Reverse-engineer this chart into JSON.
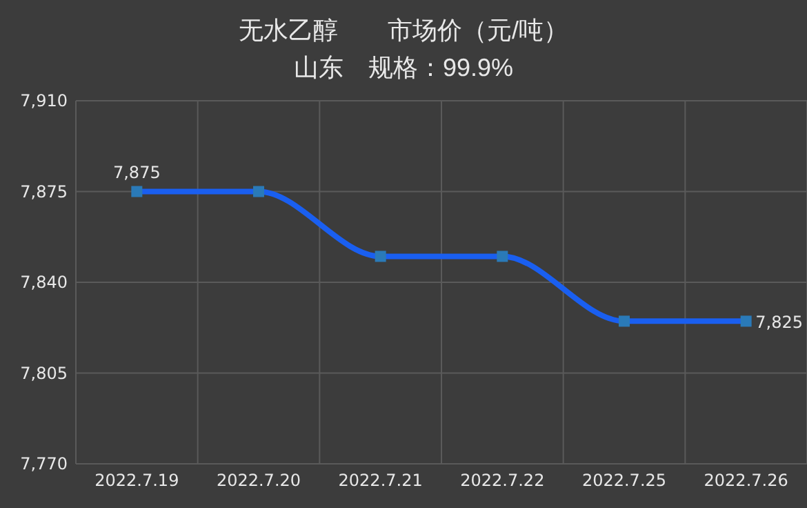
{
  "chart_data": {
    "type": "line",
    "title": "无水乙醇　　市场价（元/吨）",
    "subtitle": "山东　规格：99.9%",
    "categories": [
      "2022.7.19",
      "2022.7.20",
      "2022.7.21",
      "2022.7.22",
      "2022.7.25",
      "2022.7.26"
    ],
    "series": [
      {
        "color": "#1a5ff0",
        "values": [
          7875,
          7875,
          7850,
          7850,
          7825,
          7825
        ],
        "value_labels": [
          "7,875",
          null,
          null,
          null,
          null,
          "7,825"
        ]
      }
    ],
    "ylim": [
      7770,
      7910
    ],
    "yticks": [
      {
        "value": 7770,
        "label": "7,770"
      },
      {
        "value": 7805,
        "label": "7,805"
      },
      {
        "value": 7840,
        "label": "7,840"
      },
      {
        "value": 7875,
        "label": "7,875"
      },
      {
        "value": 7910,
        "label": "7,910"
      }
    ],
    "grid": true,
    "marker": "square",
    "line_style": "solid"
  }
}
